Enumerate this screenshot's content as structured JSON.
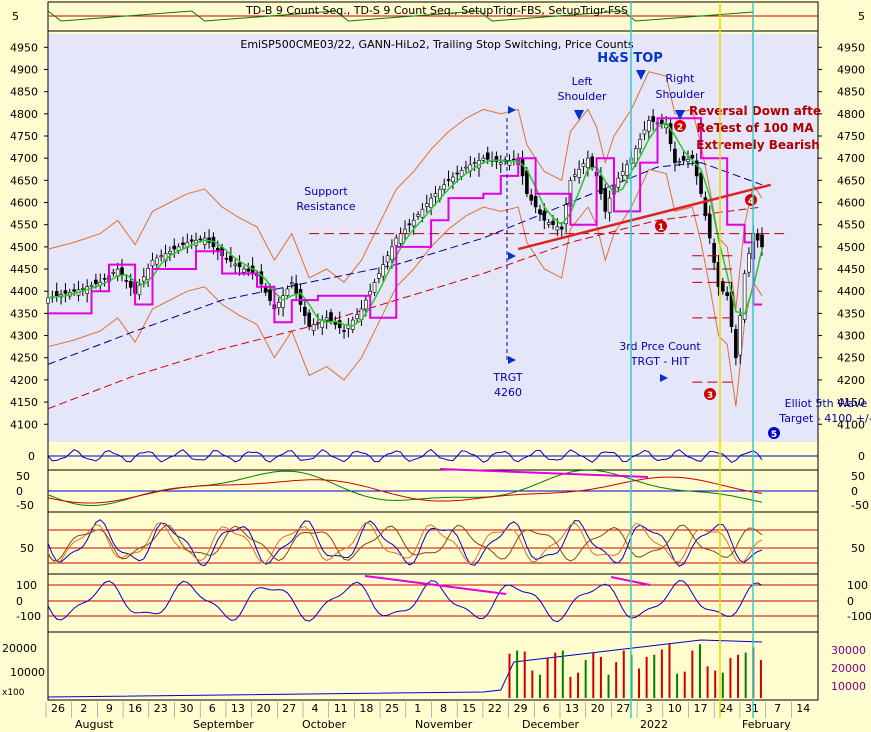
{
  "chart_data": [
    {
      "type": "line",
      "panel": "TD count indicator",
      "title": "TD-B 9 Count Seq., TD-S 9 Count Seq., SetupTrigr-FBS, SetupTrigr-FSS",
      "y_tick_labels": [
        "5"
      ],
      "series_colors": [
        "#008000",
        "#c00000"
      ]
    },
    {
      "type": "line",
      "panel": "price",
      "title": "EmiSP500CME03/22, GANN-HiLo2, Trailing Stop Switching, Price Counts",
      "ylim": [
        4060,
        4980
      ],
      "y_ticks": [
        4100,
        4150,
        4200,
        4250,
        4300,
        4350,
        4400,
        4450,
        4500,
        4550,
        4600,
        4650,
        4700,
        4750,
        4800,
        4850,
        4900,
        4950
      ],
      "close_path": [
        [
          0,
          4385
        ],
        [
          6,
          4400
        ],
        [
          12,
          4420
        ],
        [
          16,
          4450
        ],
        [
          20,
          4395
        ],
        [
          24,
          4470
        ],
        [
          28,
          4490
        ],
        [
          32,
          4510
        ],
        [
          36,
          4520
        ],
        [
          40,
          4480
        ],
        [
          44,
          4455
        ],
        [
          48,
          4435
        ],
        [
          52,
          4360
        ],
        [
          56,
          4420
        ],
        [
          60,
          4320
        ],
        [
          64,
          4340
        ],
        [
          68,
          4310
        ],
        [
          72,
          4360
        ],
        [
          76,
          4440
        ],
        [
          80,
          4520
        ],
        [
          84,
          4560
        ],
        [
          88,
          4610
        ],
        [
          92,
          4650
        ],
        [
          96,
          4680
        ],
        [
          100,
          4700
        ],
        [
          104,
          4690
        ],
        [
          108,
          4700
        ],
        [
          110,
          4620
        ],
        [
          114,
          4560
        ],
        [
          118,
          4540
        ],
        [
          120,
          4650
        ],
        [
          124,
          4700
        ],
        [
          126,
          4660
        ],
        [
          128,
          4580
        ],
        [
          130,
          4640
        ],
        [
          134,
          4700
        ],
        [
          138,
          4785
        ],
        [
          140,
          4780
        ],
        [
          142,
          4775
        ],
        [
          144,
          4690
        ],
        [
          148,
          4700
        ],
        [
          150,
          4620
        ],
        [
          152,
          4520
        ],
        [
          154,
          4410
        ],
        [
          156,
          4390
        ],
        [
          158,
          4250
        ],
        [
          160,
          4440
        ],
        [
          162,
          4530
        ],
        [
          164,
          4500
        ]
      ],
      "gann_hilo_path": [
        [
          0,
          4350
        ],
        [
          10,
          4400
        ],
        [
          14,
          4460
        ],
        [
          20,
          4370
        ],
        [
          24,
          4450
        ],
        [
          34,
          4490
        ],
        [
          40,
          4440
        ],
        [
          48,
          4410
        ],
        [
          52,
          4330
        ],
        [
          56,
          4380
        ],
        [
          62,
          4390
        ],
        [
          72,
          4390
        ],
        [
          74,
          4340
        ],
        [
          80,
          4500
        ],
        [
          88,
          4560
        ],
        [
          92,
          4610
        ],
        [
          100,
          4620
        ],
        [
          104,
          4660
        ],
        [
          108,
          4700
        ],
        [
          112,
          4620
        ],
        [
          120,
          4550
        ],
        [
          126,
          4700
        ],
        [
          130,
          4580
        ],
        [
          136,
          4690
        ],
        [
          140,
          4790
        ],
        [
          148,
          4790
        ],
        [
          150,
          4700
        ],
        [
          156,
          4550
        ],
        [
          160,
          4510
        ],
        [
          162,
          4370
        ],
        [
          164,
          4370
        ]
      ],
      "ma_long_path": [
        [
          0,
          4235
        ],
        [
          20,
          4310
        ],
        [
          40,
          4380
        ],
        [
          60,
          4420
        ],
        [
          80,
          4460
        ],
        [
          100,
          4520
        ],
        [
          120,
          4600
        ],
        [
          140,
          4680
        ],
        [
          150,
          4690
        ],
        [
          164,
          4640
        ]
      ],
      "ma_100_path": [
        [
          0,
          4135
        ],
        [
          20,
          4210
        ],
        [
          40,
          4270
        ],
        [
          60,
          4320
        ],
        [
          80,
          4380
        ],
        [
          100,
          4440
        ],
        [
          120,
          4510
        ],
        [
          140,
          4560
        ],
        [
          164,
          4590
        ]
      ],
      "horizontal_levels": [
        4530,
        4480,
        4450,
        4420,
        4340,
        4195
      ],
      "annotations": [
        {
          "text": "H&S TOP",
          "price": 4890,
          "color": "#0033cc"
        },
        {
          "text": "Left",
          "price": 4860,
          "color": "#0000aa"
        },
        {
          "text": "Shoulder",
          "price": 4830,
          "color": "#0000aa"
        },
        {
          "text": "Right",
          "price": 4866,
          "color": "#0000aa"
        },
        {
          "text": "Shoulder",
          "price": 4834,
          "color": "#0000aa"
        },
        {
          "text": "Reversal Down afte",
          "price": 4795,
          "color": "#b00000"
        },
        {
          "text": "ReTest of 100 MA",
          "price": 4760,
          "color": "#b00000"
        },
        {
          "text": "Extremely Bearish",
          "price": 4725,
          "color": "#b00000"
        },
        {
          "text": "Support",
          "price": 4615,
          "color": "#0000aa"
        },
        {
          "text": "Resistance",
          "price": 4585,
          "color": "#0000aa"
        },
        {
          "text": "3rd Prce Count",
          "price": 4248,
          "color": "#0000aa"
        },
        {
          "text": "TRGT - HIT",
          "price": 4218,
          "color": "#0000aa"
        },
        {
          "text": "TRGT",
          "price": 4200,
          "color": "#0000aa"
        },
        {
          "text": "4260",
          "price": 4168,
          "color": "#0000aa"
        },
        {
          "text": "Elliot 5th Wave",
          "price": 4140,
          "color": "#0000aa"
        },
        {
          "text": "Target - 4100 +/-",
          "price": 4110,
          "color": "#0000aa"
        }
      ],
      "wave_markers": [
        {
          "text": "1",
          "price": 4535,
          "color": "#cc0000"
        },
        {
          "text": "2",
          "price": 4770,
          "color": "#cc0000"
        },
        {
          "text": "3",
          "price": 4173,
          "color": "#cc0000"
        },
        {
          "text": "4",
          "price": 4597,
          "color": "#cc0000"
        },
        {
          "text": "5",
          "price": 4077,
          "color": "#0000cc"
        }
      ]
    },
    {
      "type": "line",
      "panel": "oscillator 1",
      "y_tick_labels": [
        "0"
      ]
    },
    {
      "type": "line",
      "panel": "oscillator 2",
      "y_tick_labels": [
        "50",
        "0",
        "-50"
      ]
    },
    {
      "type": "line",
      "panel": "stochastic",
      "y_tick_labels": [
        "50"
      ]
    },
    {
      "type": "line",
      "panel": "CCI",
      "y_tick_labels": [
        "100",
        "0",
        "-100"
      ]
    },
    {
      "type": "bar",
      "panel": "volume",
      "left_tick_labels": [
        "20000",
        "10000"
      ],
      "right_tick_labels": [
        "30000",
        "20000",
        "10000"
      ],
      "scale_label": "x100",
      "volume_bars": [
        4200,
        4500,
        4400,
        2600,
        2200,
        3800,
        4300,
        4500,
        2000,
        2400,
        3600,
        4300,
        3900,
        2200,
        3400,
        4500,
        4100,
        2800,
        3900,
        4100,
        4600,
        5200,
        2300,
        2500,
        4500,
        5100,
        3000,
        2600,
        2400,
        3800,
        4100,
        4300,
        4800,
        3600
      ]
    }
  ],
  "x_axis": {
    "day_labels": [
      "26",
      "2",
      "9",
      "16",
      "23",
      "30",
      "6",
      "13",
      "20",
      "27",
      "4",
      "11",
      "18",
      "25",
      "1",
      "8",
      "15",
      "22",
      "29",
      "6",
      "13",
      "20",
      "27",
      "3",
      "10",
      "17",
      "24",
      "31",
      "7",
      "14"
    ],
    "month_labels": [
      "August",
      "September",
      "October",
      "November",
      "December",
      "2022",
      "February"
    ]
  },
  "colors": {
    "background": "#fffccf",
    "price_panel_bg": "#e6e6fa",
    "axis_text": "#000000",
    "annotation_blue": "#0000aa",
    "annotation_red": "#b00000",
    "gann_hilo": "#e000e0",
    "short_ma": "#22cc22",
    "long_ma": "#00008b",
    "ma_100": "#cc0000",
    "band": "#e07030",
    "cyan_line": "#33cccc",
    "yellow_line": "#e8d800"
  }
}
